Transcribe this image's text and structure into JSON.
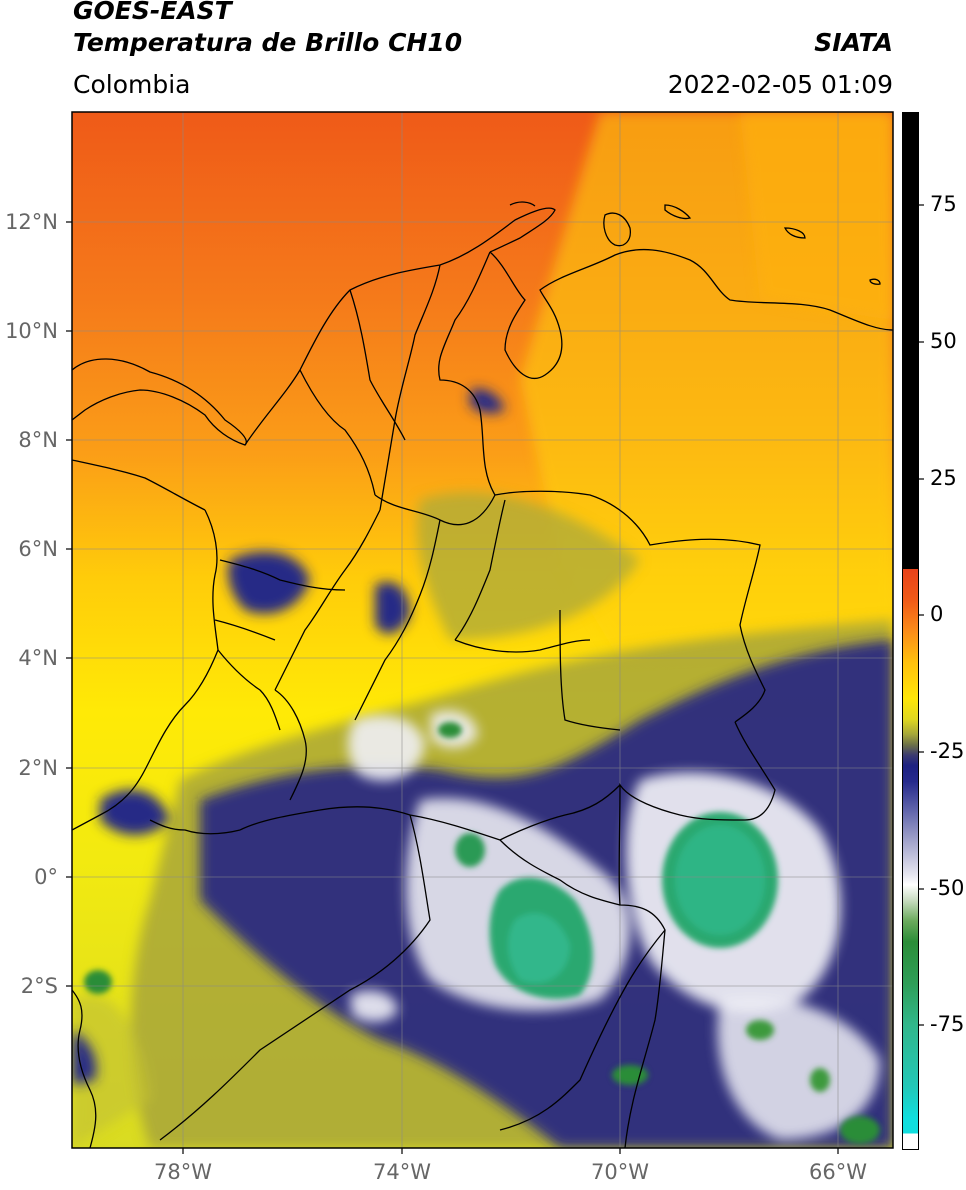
{
  "header": {
    "satellite": "GOES-EAST",
    "product": "Temperatura de Brillo CH10",
    "region": "Colombia",
    "agency": "SIATA",
    "datetime": "2022-02-05 01:09"
  },
  "axes": {
    "lat_labels": [
      "12°N",
      "10°N",
      "8°N",
      "6°N",
      "4°N",
      "2°N",
      "0°",
      "2°S"
    ],
    "lon_labels": [
      "78°W",
      "74°W",
      "70°W",
      "66°W"
    ]
  },
  "colorbar": {
    "ticks": [
      "75",
      "50",
      "25",
      "0",
      "-25",
      "-50",
      "-75"
    ],
    "colors": {
      "warm_dark_red": "#e8421a",
      "warm_orange": "#fb8c1a",
      "yellow": "#ffe608",
      "olive": "#a4a63a",
      "navy": "#1d2181",
      "white": "#ffffff",
      "green": "#2b8d38",
      "teal": "#31b78b",
      "cyan": "#10dede",
      "black": "#000000"
    }
  }
}
